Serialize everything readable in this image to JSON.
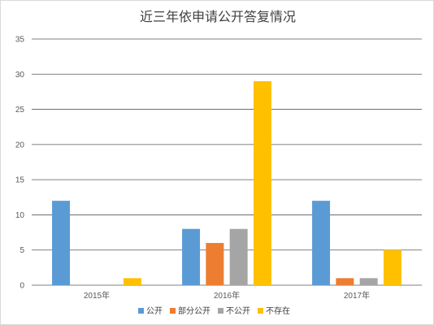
{
  "chart_data": {
    "type": "bar",
    "title": "近三年依申请公开答复情况",
    "xlabel": "",
    "ylabel": "",
    "categories": [
      "2015年",
      "2016年",
      "2017年"
    ],
    "series": [
      {
        "name": "公开",
        "color": "#5B9BD5",
        "values": [
          12,
          8,
          12
        ]
      },
      {
        "name": "部分公开",
        "color": "#ED7D31",
        "values": [
          0,
          6,
          1
        ]
      },
      {
        "name": "不公开",
        "color": "#A5A5A5",
        "values": [
          0,
          8,
          1
        ]
      },
      {
        "name": "不存在",
        "color": "#FFC000",
        "values": [
          1,
          29,
          5
        ]
      }
    ],
    "ylim": [
      0,
      35
    ],
    "yticks": [
      "0",
      "5",
      "10",
      "15",
      "20",
      "25",
      "30",
      "35"
    ],
    "grid": true,
    "legend_position": "bottom"
  }
}
